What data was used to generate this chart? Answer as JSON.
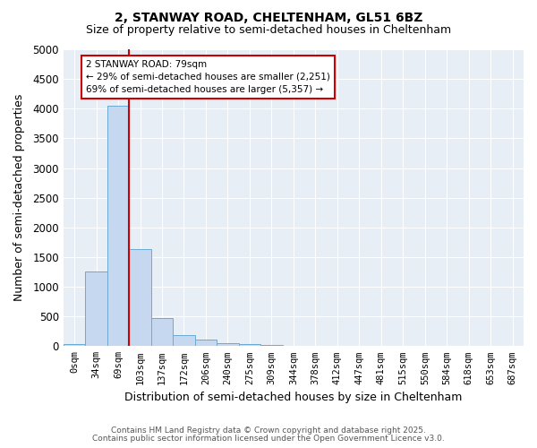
{
  "title1": "2, STANWAY ROAD, CHELTENHAM, GL51 6BZ",
  "title2": "Size of property relative to semi-detached houses in Cheltenham",
  "xlabel": "Distribution of semi-detached houses by size in Cheltenham",
  "ylabel": "Number of semi-detached properties",
  "bar_labels": [
    "0sqm",
    "34sqm",
    "69sqm",
    "103sqm",
    "137sqm",
    "172sqm",
    "206sqm",
    "240sqm",
    "275sqm",
    "309sqm",
    "344sqm",
    "378sqm",
    "412sqm",
    "447sqm",
    "481sqm",
    "515sqm",
    "550sqm",
    "584sqm",
    "618sqm",
    "653sqm",
    "687sqm"
  ],
  "bar_values": [
    30,
    1250,
    4050,
    1630,
    480,
    190,
    110,
    55,
    35,
    15,
    5,
    2,
    1,
    0,
    0,
    0,
    0,
    0,
    0,
    0,
    0
  ],
  "bar_color": "#c5d8f0",
  "bar_edge_color": "#6aabd2",
  "red_line_color": "#cc0000",
  "annotation_title": "2 STANWAY ROAD: 79sqm",
  "annotation_line1": "← 29% of semi-detached houses are smaller (2,251)",
  "annotation_line2": "69% of semi-detached houses are larger (5,357) →",
  "annotation_box_color": "#ffffff",
  "annotation_box_edge": "#cc0000",
  "ylim": [
    0,
    5000
  ],
  "yticks": [
    0,
    500,
    1000,
    1500,
    2000,
    2500,
    3000,
    3500,
    4000,
    4500,
    5000
  ],
  "bg_color": "#ffffff",
  "plot_bg_color": "#e8eef5",
  "grid_color": "#ffffff",
  "footer1": "Contains HM Land Registry data © Crown copyright and database right 2025.",
  "footer2": "Contains public sector information licensed under the Open Government Licence v3.0."
}
